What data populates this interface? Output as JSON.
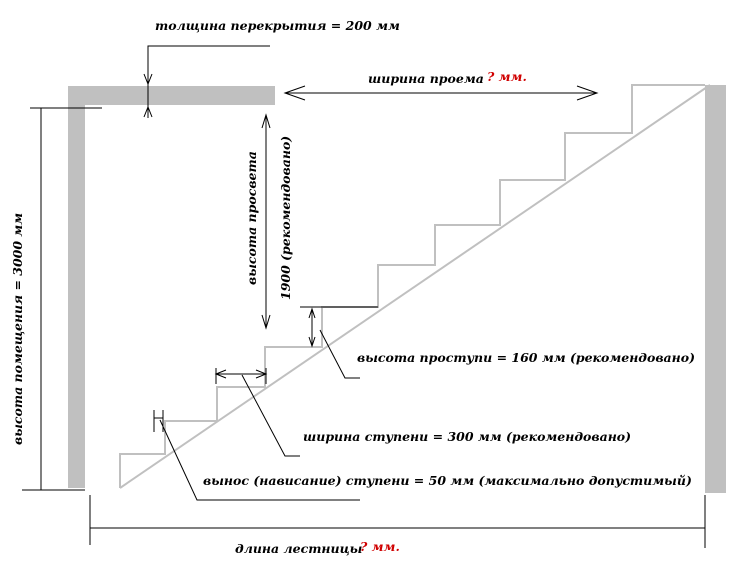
{
  "labels": {
    "slab_thickness": "толщина перекрытия = 200 мм",
    "opening_width": "ширина проема",
    "opening_width_value": "? мм.",
    "clearance_height": "высота просвета",
    "clearance_value": "1900 (рекомендовано)",
    "room_height": "высота помещения = 3000 мм",
    "riser_height": "высота проступи = 160 мм (рекомендовано)",
    "tread_width": "ширина ступени = 300 мм (рекомендовано)",
    "nosing": "вынос (нависание) ступени = 50 мм (максимально допустимый)",
    "stair_length": "длина лестницы",
    "stair_length_value": "? мм."
  },
  "colors": {
    "wall": "#c0c0c0",
    "unknown_value": "#d00000"
  }
}
